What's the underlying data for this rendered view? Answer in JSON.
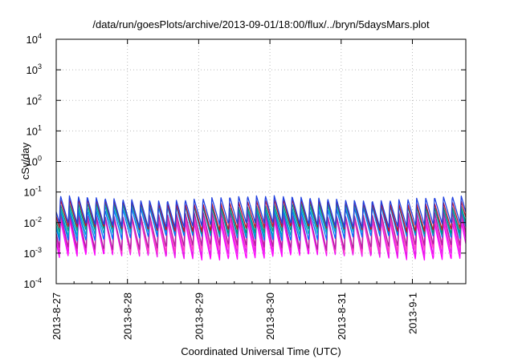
{
  "chart_data": {
    "type": "line",
    "title": "/data/run/goesPlots/archive/2013-09-01/18:00/flux/../bryn/5daysMars.plot",
    "xlabel": "Coordinated Universal Time (UTC)",
    "ylabel": "cSv/day",
    "yscale": "log",
    "ylim": [
      0.0001,
      10000
    ],
    "xlim": [
      "2013-08-27 00:00",
      "2013-09-01 18:00"
    ],
    "y_ticks": [
      {
        "base": "10",
        "exp": "-4",
        "value": 0.0001
      },
      {
        "base": "10",
        "exp": "-3",
        "value": 0.001
      },
      {
        "base": "10",
        "exp": "-2",
        "value": 0.01
      },
      {
        "base": "10",
        "exp": "-1",
        "value": 0.1
      },
      {
        "base": "10",
        "exp": "0",
        "value": 1
      },
      {
        "base": "10",
        "exp": "1",
        "value": 10
      },
      {
        "base": "10",
        "exp": "2",
        "value": 100
      },
      {
        "base": "10",
        "exp": "3",
        "value": 1000
      },
      {
        "base": "10",
        "exp": "4",
        "value": 10000
      }
    ],
    "x_ticks": [
      "2013-8-27",
      "2013-8-28",
      "2013-8-29",
      "2013-8-30",
      "2013-8-31",
      "2013-9-1"
    ],
    "grid": true,
    "legend": "none",
    "pattern": {
      "peaks_per_day": 8,
      "peak_phase_day": 0.06
    },
    "series": [
      {
        "color": "#ff00ff",
        "peak": 0.012,
        "trough": 0.0007
      },
      {
        "color": "#e61ee6",
        "peak": 0.015,
        "trough": 0.0009
      },
      {
        "color": "#ff40c0",
        "peak": 0.018,
        "trough": 0.0012
      },
      {
        "color": "#b0209f",
        "peak": 0.02,
        "trough": 0.0015
      },
      {
        "color": "#0070ff",
        "peak": 0.03,
        "trough": 0.003
      },
      {
        "color": "#00a8c8",
        "peak": 0.035,
        "trough": 0.004
      },
      {
        "color": "#009a7a",
        "peak": 0.04,
        "trough": 0.005
      },
      {
        "color": "#c01030",
        "peak": 0.05,
        "trough": 0.006
      },
      {
        "color": "#2040e0",
        "peak": 0.065,
        "trough": 0.008
      }
    ]
  }
}
